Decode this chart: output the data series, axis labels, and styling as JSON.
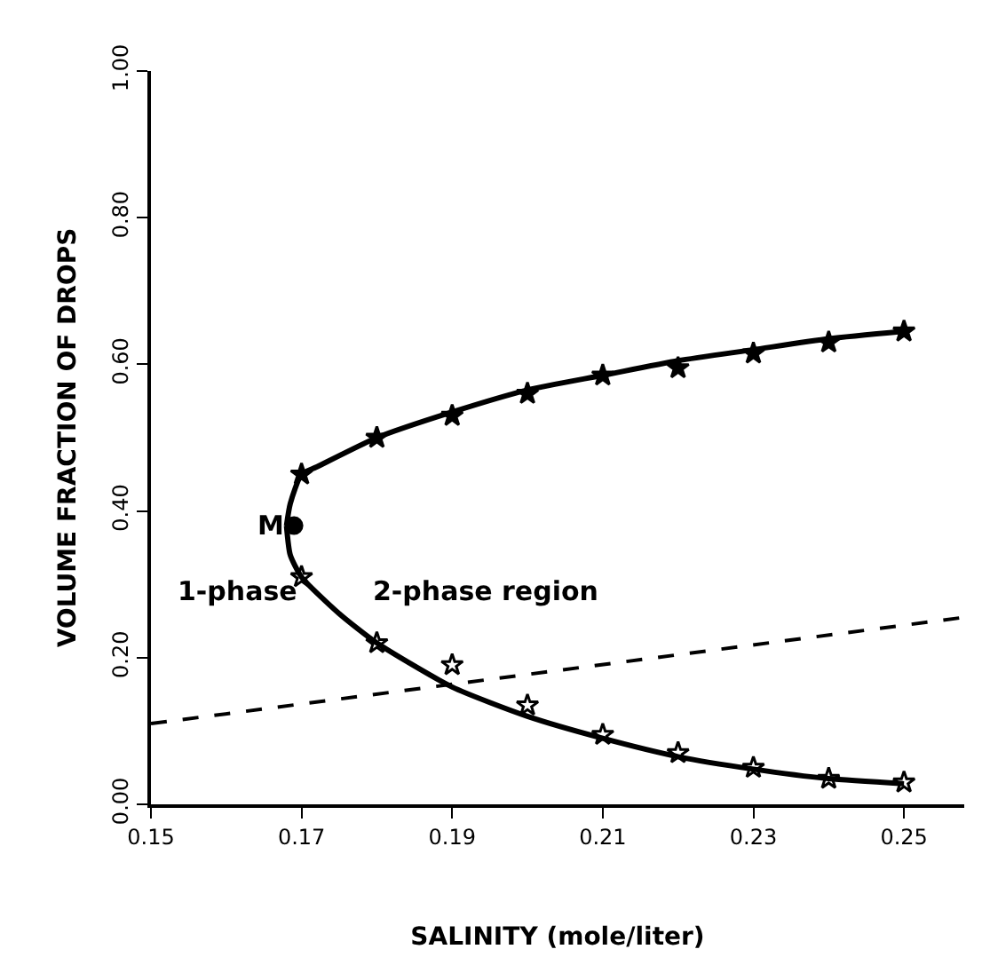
{
  "chart_data": {
    "type": "scatter",
    "xlabel": "SALINITY (mole/liter)",
    "ylabel": "VOLUME FRACTION OF DROPS",
    "xlim": [
      0.15,
      0.258
    ],
    "xticks": [
      0.15,
      0.17,
      0.19,
      0.21,
      0.23,
      0.25
    ],
    "ylim": [
      0,
      1.0
    ],
    "yticks": [
      {
        "value": 0,
        "label": "0.00"
      },
      {
        "value": 0.2,
        "label": "0.20"
      },
      {
        "value": 0.4,
        "label": "0.40"
      },
      {
        "value": 0.6,
        "label": "0.60"
      },
      {
        "value": 0.8,
        "label": "0.80"
      },
      {
        "value": 1.0,
        "label": "1.00"
      }
    ],
    "series": [
      {
        "type": "line",
        "color": "#000000",
        "line_style": "solid",
        "marker": "none",
        "x": [
          0.168,
          0.1685,
          0.17,
          0.172,
          0.18,
          0.19,
          0.2,
          0.21,
          0.22,
          0.23,
          0.24,
          0.25
        ],
        "values": [
          0.38,
          0.41,
          0.45,
          0.46,
          0.5,
          0.535,
          0.565,
          0.585,
          0.605,
          0.62,
          0.635,
          0.645
        ]
      },
      {
        "type": "line",
        "color": "#000000",
        "line_style": "solid",
        "marker": "none",
        "x": [
          0.168,
          0.1685,
          0.17,
          0.175,
          0.18,
          0.19,
          0.2,
          0.21,
          0.22,
          0.23,
          0.24,
          0.25
        ],
        "values": [
          0.38,
          0.34,
          0.31,
          0.26,
          0.22,
          0.16,
          0.12,
          0.09,
          0.065,
          0.048,
          0.035,
          0.028
        ]
      },
      {
        "type": "line",
        "color": "#000000",
        "line_style": "dashed",
        "marker": "none",
        "x": [
          0.15,
          0.258
        ],
        "values": [
          0.11,
          0.255
        ]
      },
      {
        "color": "#000000",
        "marker": "star",
        "x": [
          0.17,
          0.18,
          0.19,
          0.2,
          0.21,
          0.22,
          0.23,
          0.24,
          0.25
        ],
        "values": [
          0.45,
          0.5,
          0.53,
          0.56,
          0.585,
          0.595,
          0.615,
          0.63,
          0.645
        ]
      },
      {
        "color": "#000000",
        "marker": "star-open",
        "x": [
          0.17,
          0.18,
          0.19,
          0.2,
          0.21,
          0.22,
          0.23,
          0.24,
          0.25
        ],
        "values": [
          0.31,
          0.22,
          0.19,
          0.135,
          0.095,
          0.07,
          0.05,
          0.035,
          0.03
        ]
      },
      {
        "color": "#000000",
        "marker": "circle",
        "x": [
          0.169
        ],
        "values": [
          0.38
        ]
      }
    ],
    "annotations": [
      {
        "text": "M",
        "x": 0.169,
        "y": 0.38
      },
      "1-phase",
      "2-phase region"
    ]
  }
}
